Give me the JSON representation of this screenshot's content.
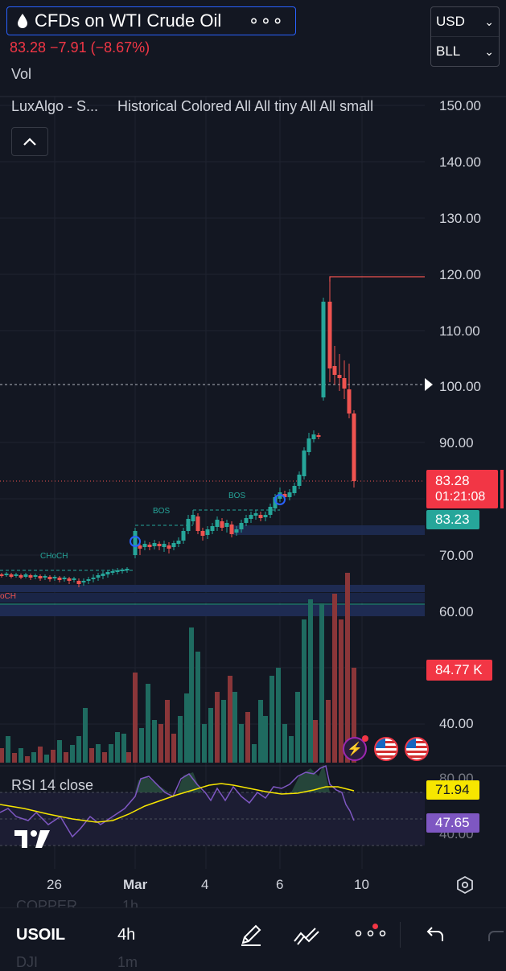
{
  "header": {
    "title": "CFDs on WTI Crude Oil",
    "price_line": "83.28  −7.91 (−8.67%)",
    "currency": "USD",
    "unit": "BLL",
    "vol_label": "Vol",
    "indicator_name": "LuxAlgo - S...",
    "indicator_params": "Historical Colored All All tiny All All small"
  },
  "price_axis": {
    "ticks": [
      "150.00",
      "140.00",
      "130.00",
      "120.00",
      "110.00",
      "100.00",
      "90.00",
      "70.00",
      "60.00",
      "40.00"
    ],
    "current_price": "83.28",
    "countdown": "01:21:08",
    "secondary_price": "83.23",
    "volume_value": "84.77 K"
  },
  "annotations": {
    "bos_1": "BOS",
    "bos_2": "BOS",
    "choch": "CHoCH",
    "choch_partial": "oCH"
  },
  "rsi": {
    "label": "RSI 14 close",
    "ticks": [
      "80.00",
      "40.00"
    ],
    "ma_value": "71.94",
    "rsi_value": "47.65"
  },
  "time_axis": [
    "26",
    "Mar",
    "4",
    "6",
    "10"
  ],
  "bottom_bar": {
    "behind_symbol": "COPPER",
    "behind_interval": "1h",
    "symbol": "USOIL",
    "interval": "4h",
    "behind_symbol_2": "DJI",
    "behind_interval_2": "1m"
  },
  "colors": {
    "up": "#26a69a",
    "down": "#ef5350",
    "background": "#131722",
    "accent": "#2962ff",
    "rsi_ma": "#f7e600",
    "rsi_line": "#7e57c2"
  }
}
